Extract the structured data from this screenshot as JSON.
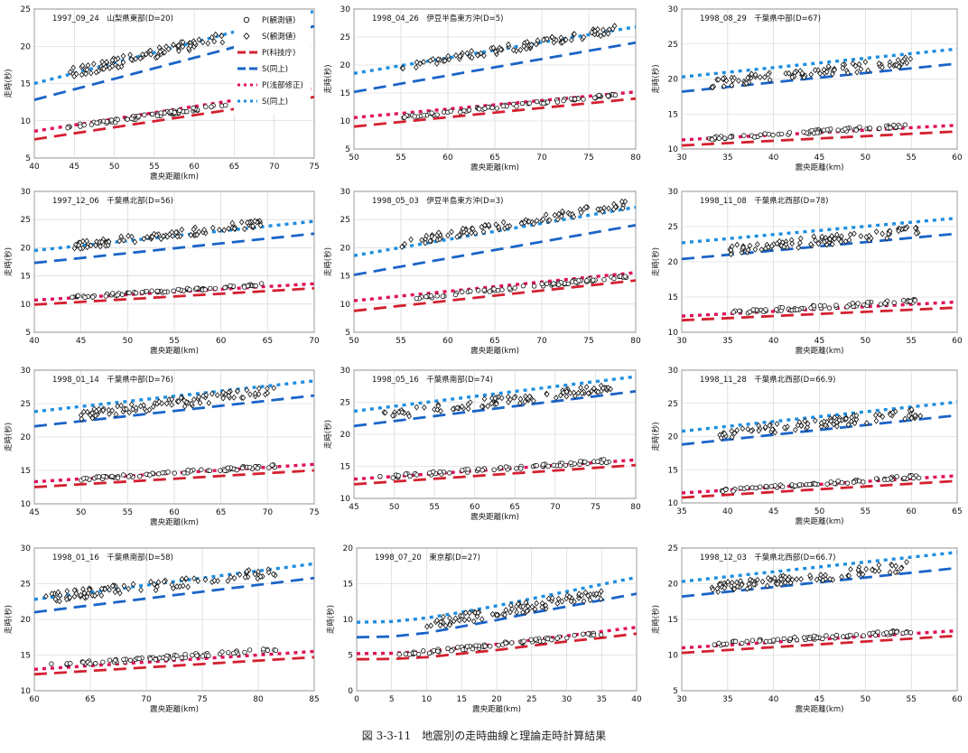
{
  "figure": {
    "caption": "図 3-3-11　地震別の走時曲線と理論走時計算結果",
    "xlabel": "震央距離(km)",
    "ylabel": "走時(秒)",
    "legend": [
      {
        "label": "P(観測値)",
        "marker": "circle"
      },
      {
        "label": "S(観測値)",
        "marker": "diamond"
      },
      {
        "label": "P(科技庁)",
        "style": "dash",
        "color": "#d42030"
      },
      {
        "label": "S(同上)",
        "style": "dash",
        "color": "#1a64c8"
      },
      {
        "label": "P(浅部修正)",
        "style": "dot",
        "color": "#e0105a"
      },
      {
        "label": "S(同上)",
        "style": "dot",
        "color": "#1e8ee0"
      }
    ]
  },
  "colors": {
    "p_kagi": "#d42030",
    "s_kagi": "#1a64c8",
    "p_shallow": "#e0105a",
    "s_shallow": "#1e8ee0",
    "obs": "#111111"
  },
  "chart_data": [
    {
      "type": "scatter",
      "title": "1997_09_24　山梨県東部(D=20)",
      "xlim": [
        40,
        75
      ],
      "ylim": [
        5,
        25
      ],
      "xticks": [
        40,
        45,
        50,
        55,
        60,
        65,
        70,
        75
      ],
      "yticks": [
        5,
        10,
        15,
        20,
        25
      ],
      "obs_range": [
        44,
        64
      ],
      "legend": true,
      "series": [
        {
          "name": "P(観測値)",
          "x": [
            44,
            64
          ],
          "y": [
            9.1,
            12.1
          ]
        },
        {
          "name": "S(観測値)",
          "x": [
            44,
            64
          ],
          "y": [
            16.2,
            21.3
          ]
        },
        {
          "name": "P(科技庁)",
          "x": [
            40,
            75
          ],
          "y": [
            7.5,
            13.2
          ]
        },
        {
          "name": "S(同上)",
          "x": [
            40,
            75
          ],
          "y": [
            12.8,
            22.7
          ]
        },
        {
          "name": "P(浅部修正)",
          "x": [
            40,
            75
          ],
          "y": [
            8.6,
            14.4
          ]
        },
        {
          "name": "S(同上)",
          "x": [
            40,
            75
          ],
          "y": [
            15.0,
            24.7
          ]
        }
      ]
    },
    {
      "type": "scatter",
      "title": "1998_04_26　伊豆半島東方沖(D=5)",
      "xlim": [
        50,
        80
      ],
      "ylim": [
        5,
        30
      ],
      "xticks": [
        50,
        55,
        60,
        65,
        70,
        75,
        80
      ],
      "yticks": [
        5,
        10,
        15,
        20,
        25,
        30
      ],
      "obs_range": [
        55,
        78
      ],
      "legend": false,
      "series": [
        {
          "name": "P(観測値)",
          "x": [
            55,
            78
          ],
          "y": [
            10.7,
            14.7
          ]
        },
        {
          "name": "S(観測値)",
          "x": [
            55,
            78
          ],
          "y": [
            19.6,
            26.4
          ]
        },
        {
          "name": "P(科技庁)",
          "x": [
            50,
            80
          ],
          "y": [
            9.0,
            14.0
          ]
        },
        {
          "name": "S(同上)",
          "x": [
            50,
            80
          ],
          "y": [
            15.2,
            24.0
          ]
        },
        {
          "name": "P(浅部修正)",
          "x": [
            50,
            80
          ],
          "y": [
            10.6,
            15.2
          ]
        },
        {
          "name": "S(同上)",
          "x": [
            50,
            80
          ],
          "y": [
            18.5,
            26.8
          ]
        }
      ]
    },
    {
      "type": "scatter",
      "title": "1998_08_29　千葉県中部(D=67)",
      "xlim": [
        30,
        60
      ],
      "ylim": [
        10,
        30
      ],
      "xticks": [
        30,
        35,
        40,
        45,
        50,
        55,
        60
      ],
      "yticks": [
        10,
        15,
        20,
        25,
        30
      ],
      "obs_range": [
        33,
        55
      ],
      "legend": false,
      "series": [
        {
          "name": "P(観測値)",
          "x": [
            33,
            55
          ],
          "y": [
            11.5,
            13.4
          ]
        },
        {
          "name": "S(観測値)",
          "x": [
            33,
            55
          ],
          "y": [
            19.4,
            22.5
          ]
        },
        {
          "name": "P(科技庁)",
          "x": [
            30,
            60
          ],
          "y": [
            10.5,
            12.5
          ]
        },
        {
          "name": "S(同上)",
          "x": [
            30,
            60
          ],
          "y": [
            18.2,
            22.2
          ]
        },
        {
          "name": "P(浅部修正)",
          "x": [
            30,
            60
          ],
          "y": [
            11.3,
            13.4
          ]
        },
        {
          "name": "S(同上)",
          "x": [
            30,
            60
          ],
          "y": [
            20.3,
            24.3
          ]
        }
      ]
    },
    {
      "type": "scatter",
      "title": "1997_12_06　千葉県北部(D=56)",
      "xlim": [
        40,
        70
      ],
      "ylim": [
        5,
        30
      ],
      "xticks": [
        40,
        45,
        50,
        55,
        60,
        65,
        70
      ],
      "yticks": [
        5,
        10,
        15,
        20,
        25,
        30
      ],
      "obs_range": [
        44,
        65
      ],
      "legend": false,
      "series": [
        {
          "name": "P(観測値)",
          "x": [
            44,
            65
          ],
          "y": [
            11.2,
            13.5
          ]
        },
        {
          "name": "S(観測値)",
          "x": [
            44,
            65
          ],
          "y": [
            20.3,
            24.5
          ]
        },
        {
          "name": "P(科技庁)",
          "x": [
            40,
            70
          ],
          "y": [
            9.9,
            12.8
          ]
        },
        {
          "name": "S(同上)",
          "x": [
            40,
            70
          ],
          "y": [
            17.3,
            22.5
          ]
        },
        {
          "name": "P(浅部修正)",
          "x": [
            40,
            70
          ],
          "y": [
            10.7,
            13.6
          ]
        },
        {
          "name": "S(同上)",
          "x": [
            40,
            70
          ],
          "y": [
            19.5,
            24.7
          ]
        }
      ]
    },
    {
      "type": "scatter",
      "title": "1998_05_03　伊豆半島東方沖(D=3)",
      "xlim": [
        50,
        80
      ],
      "ylim": [
        5,
        30
      ],
      "xticks": [
        50,
        55,
        60,
        65,
        70,
        75,
        80
      ],
      "yticks": [
        5,
        10,
        15,
        20,
        25,
        30
      ],
      "obs_range": [
        55,
        79
      ],
      "legend": false,
      "series": [
        {
          "name": "P(観測値)",
          "x": [
            55,
            79
          ],
          "y": [
            10.8,
            14.9
          ]
        },
        {
          "name": "S(観測値)",
          "x": [
            55,
            79
          ],
          "y": [
            20.8,
            27.8
          ]
        },
        {
          "name": "P(科技庁)",
          "x": [
            50,
            80
          ],
          "y": [
            8.8,
            14.2
          ]
        },
        {
          "name": "S(同上)",
          "x": [
            50,
            80
          ],
          "y": [
            15.2,
            24.0
          ]
        },
        {
          "name": "P(浅部修正)",
          "x": [
            50,
            80
          ],
          "y": [
            10.6,
            15.6
          ]
        },
        {
          "name": "S(同上)",
          "x": [
            50,
            80
          ],
          "y": [
            18.6,
            27.2
          ]
        }
      ]
    },
    {
      "type": "scatter",
      "title": "1998_11_08　千葉県北西部(D=78)",
      "xlim": [
        30,
        60
      ],
      "ylim": [
        10,
        30
      ],
      "xticks": [
        30,
        35,
        40,
        45,
        50,
        55,
        60
      ],
      "yticks": [
        10,
        15,
        20,
        25,
        30
      ],
      "obs_range": [
        35,
        56
      ],
      "legend": false,
      "series": [
        {
          "name": "P(観測値)",
          "x": [
            35,
            56
          ],
          "y": [
            12.8,
            14.5
          ]
        },
        {
          "name": "S(観測値)",
          "x": [
            35,
            56
          ],
          "y": [
            21.6,
            24.5
          ]
        },
        {
          "name": "P(科技庁)",
          "x": [
            30,
            60
          ],
          "y": [
            11.7,
            13.5
          ]
        },
        {
          "name": "S(同上)",
          "x": [
            30,
            60
          ],
          "y": [
            20.4,
            24.0
          ]
        },
        {
          "name": "P(浅部修正)",
          "x": [
            30,
            60
          ],
          "y": [
            12.3,
            14.3
          ]
        },
        {
          "name": "S(同上)",
          "x": [
            30,
            60
          ],
          "y": [
            22.7,
            26.2
          ]
        }
      ]
    },
    {
      "type": "scatter",
      "title": "1998_01_14　千葉県中部(D=76)",
      "xlim": [
        45,
        75
      ],
      "ylim": [
        10,
        30
      ],
      "xticks": [
        45,
        50,
        55,
        60,
        65,
        70,
        75
      ],
      "yticks": [
        10,
        15,
        20,
        25,
        30
      ],
      "obs_range": [
        50,
        71
      ],
      "legend": false,
      "series": [
        {
          "name": "P(観測値)",
          "x": [
            50,
            71
          ],
          "y": [
            13.7,
            15.7
          ]
        },
        {
          "name": "S(観測値)",
          "x": [
            50,
            71
          ],
          "y": [
            23.3,
            27.0
          ]
        },
        {
          "name": "P(科技庁)",
          "x": [
            45,
            75
          ],
          "y": [
            12.5,
            15.0
          ]
        },
        {
          "name": "S(同上)",
          "x": [
            45,
            75
          ],
          "y": [
            21.6,
            26.2
          ]
        },
        {
          "name": "P(浅部修正)",
          "x": [
            45,
            75
          ],
          "y": [
            13.3,
            15.9
          ]
        },
        {
          "name": "S(同上)",
          "x": [
            45,
            75
          ],
          "y": [
            23.8,
            28.4
          ]
        }
      ]
    },
    {
      "type": "scatter",
      "title": "1998_05_16　千葉県南部(D=74)",
      "xlim": [
        45,
        80
      ],
      "ylim": [
        10,
        30
      ],
      "xticks": [
        45,
        50,
        55,
        60,
        65,
        70,
        75,
        80
      ],
      "yticks": [
        10,
        15,
        20,
        25,
        30
      ],
      "obs_range": [
        48,
        77
      ],
      "legend": false,
      "series": [
        {
          "name": "P(観測値)",
          "x": [
            48,
            77
          ],
          "y": [
            13.3,
            15.9
          ]
        },
        {
          "name": "S(観測値)",
          "x": [
            48,
            77
          ],
          "y": [
            22.8,
            27.3
          ]
        },
        {
          "name": "P(科技庁)",
          "x": [
            45,
            80
          ],
          "y": [
            12.2,
            15.2
          ]
        },
        {
          "name": "S(同上)",
          "x": [
            45,
            80
          ],
          "y": [
            21.3,
            26.7
          ]
        },
        {
          "name": "P(浅部修正)",
          "x": [
            45,
            80
          ],
          "y": [
            13.0,
            16.0
          ]
        },
        {
          "name": "S(同上)",
          "x": [
            45,
            80
          ],
          "y": [
            23.6,
            29.0
          ]
        }
      ]
    },
    {
      "type": "scatter",
      "title": "1998_11_28　千葉県北西部(D=66.9)",
      "xlim": [
        35,
        65
      ],
      "ylim": [
        10,
        30
      ],
      "xticks": [
        35,
        40,
        45,
        50,
        55,
        60,
        65
      ],
      "yticks": [
        10,
        15,
        20,
        25,
        30
      ],
      "obs_range": [
        39,
        61
      ],
      "legend": false,
      "series": [
        {
          "name": "P(観測値)",
          "x": [
            39,
            61
          ],
          "y": [
            11.8,
            14.0
          ]
        },
        {
          "name": "S(観測値)",
          "x": [
            39,
            61
          ],
          "y": [
            20.3,
            23.6
          ]
        },
        {
          "name": "P(科技庁)",
          "x": [
            35,
            65
          ],
          "y": [
            10.8,
            13.3
          ]
        },
        {
          "name": "S(同上)",
          "x": [
            35,
            65
          ],
          "y": [
            18.8,
            23.2
          ]
        },
        {
          "name": "P(浅部修正)",
          "x": [
            35,
            65
          ],
          "y": [
            11.5,
            14.1
          ]
        },
        {
          "name": "S(同上)",
          "x": [
            35,
            65
          ],
          "y": [
            20.8,
            25.2
          ]
        }
      ]
    },
    {
      "type": "scatter",
      "title": "1998_01_16　千葉県南部(D=58)",
      "xlim": [
        60,
        85
      ],
      "ylim": [
        10,
        30
      ],
      "xticks": [
        60,
        65,
        70,
        75,
        80,
        85
      ],
      "yticks": [
        10,
        15,
        20,
        25,
        30
      ],
      "obs_range": [
        61,
        82
      ],
      "legend": false,
      "series": [
        {
          "name": "P(観測値)",
          "x": [
            61,
            82
          ],
          "y": [
            13.5,
            15.8
          ]
        },
        {
          "name": "S(観測値)",
          "x": [
            61,
            82
          ],
          "y": [
            23.0,
            26.7
          ]
        },
        {
          "name": "P(科技庁)",
          "x": [
            60,
            85
          ],
          "y": [
            12.3,
            14.7
          ]
        },
        {
          "name": "S(同上)",
          "x": [
            60,
            85
          ],
          "y": [
            21.0,
            25.8
          ]
        },
        {
          "name": "P(浅部修正)",
          "x": [
            60,
            85
          ],
          "y": [
            13.0,
            15.5
          ]
        },
        {
          "name": "S(同上)",
          "x": [
            60,
            85
          ],
          "y": [
            22.8,
            27.8
          ]
        }
      ]
    },
    {
      "type": "scatter",
      "title": "1998_07_20　東京都(D=27)",
      "xlim": [
        0,
        40
      ],
      "ylim": [
        0,
        20
      ],
      "xticks": [
        0,
        5,
        10,
        15,
        20,
        25,
        30,
        35,
        40
      ],
      "yticks": [
        0,
        5,
        10,
        15,
        20
      ],
      "obs_range": [
        6,
        35
      ],
      "legend": false,
      "series": [
        {
          "name": "P(観測値)",
          "x": [
            6,
            35
          ],
          "y": [
            5.0,
            8.0
          ]
        },
        {
          "name": "S(観測値)",
          "x": [
            10,
            35
          ],
          "y": [
            9.3,
            13.5
          ]
        },
        {
          "name": "P(科技庁)",
          "x": [
            0,
            5,
            10,
            15,
            20,
            25,
            30,
            35,
            40
          ],
          "y": [
            4.4,
            4.45,
            4.7,
            5.2,
            5.7,
            6.3,
            6.9,
            7.4,
            8.0
          ]
        },
        {
          "name": "S(同上)",
          "x": [
            0,
            5,
            10,
            15,
            20,
            25,
            30,
            35,
            40
          ],
          "y": [
            7.5,
            7.6,
            8.1,
            9.0,
            9.9,
            10.9,
            11.8,
            12.7,
            13.6
          ]
        },
        {
          "name": "P(浅部修正)",
          "x": [
            0,
            5,
            10,
            15,
            20,
            25,
            30,
            35,
            40
          ],
          "y": [
            5.2,
            5.25,
            5.5,
            6.0,
            6.5,
            7.1,
            7.7,
            8.3,
            8.9
          ]
        },
        {
          "name": "S(同上)",
          "x": [
            0,
            5,
            10,
            15,
            20,
            25,
            30,
            35,
            40
          ],
          "y": [
            9.6,
            9.7,
            10.2,
            11.0,
            11.9,
            12.9,
            13.9,
            14.9,
            15.9
          ]
        }
      ]
    },
    {
      "type": "scatter",
      "title": "1998_12_03　千葉県北西部(D=66.7)",
      "xlim": [
        30,
        60
      ],
      "ylim": [
        5,
        25
      ],
      "xticks": [
        30,
        35,
        40,
        45,
        50,
        55,
        60
      ],
      "yticks": [
        5,
        10,
        15,
        20,
        25
      ],
      "obs_range": [
        33,
        55
      ],
      "legend": false,
      "series": [
        {
          "name": "P(観測値)",
          "x": [
            33,
            55
          ],
          "y": [
            11.5,
            13.3
          ]
        },
        {
          "name": "S(観測値)",
          "x": [
            33,
            55
          ],
          "y": [
            19.3,
            22.5
          ]
        },
        {
          "name": "P(科技庁)",
          "x": [
            30,
            60
          ],
          "y": [
            10.3,
            12.7
          ]
        },
        {
          "name": "S(同上)",
          "x": [
            30,
            60
          ],
          "y": [
            18.2,
            22.2
          ]
        },
        {
          "name": "P(浅部修正)",
          "x": [
            30,
            60
          ],
          "y": [
            11.0,
            13.4
          ]
        },
        {
          "name": "S(同上)",
          "x": [
            30,
            60
          ],
          "y": [
            20.3,
            24.4
          ]
        }
      ]
    }
  ]
}
